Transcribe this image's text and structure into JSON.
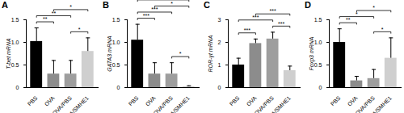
{
  "chart_data": [
    {
      "type": "bar",
      "panel": "A",
      "ylabel": "T-bet mRNA",
      "categories": [
        "PBS",
        "OVA",
        "OVA/PBS",
        "OVA/SMHE1"
      ],
      "values": [
        1.02,
        0.3,
        0.3,
        0.8
      ],
      "errors": [
        0.3,
        0.3,
        0.3,
        0.3
      ],
      "colors": [
        "#000000",
        "#8c8c8c",
        "#9e9e9e",
        "#cfcfcf"
      ],
      "ylim": [
        0,
        1.5
      ],
      "yticks": [
        0,
        0.5,
        {
          "value": 1,
          "label": "1.0"
        },
        1.5
      ],
      "significance": [
        {
          "from": "PBS",
          "to": "OVA",
          "label": "**"
        },
        {
          "from": "PBS",
          "to": "OVA/PBS",
          "label": "**"
        },
        {
          "from": "OVA/PBS",
          "to": "OVA/SMHE1",
          "label": "*"
        },
        {
          "from": "OVA",
          "to": "OVA/SMHE1",
          "label": "*"
        }
      ]
    },
    {
      "type": "bar",
      "panel": "B",
      "ylabel": "GATA3 mRNA",
      "categories": [
        "PBS",
        "OVA",
        "OVA/PBS",
        "OVA/SMHE1"
      ],
      "values": [
        1.05,
        0.3,
        0.3,
        0.02
      ],
      "errors": [
        0.35,
        0.25,
        0.25,
        0.02
      ],
      "colors": [
        "#000000",
        "#8c8c8c",
        "#9e9e9e",
        "#cfcfcf"
      ],
      "ylim": [
        0,
        1.5
      ],
      "yticks": [
        0,
        0.5,
        {
          "value": 1,
          "label": "1.0"
        },
        1.5
      ],
      "significance": [
        {
          "from": "PBS",
          "to": "OVA",
          "label": "***"
        },
        {
          "from": "PBS",
          "to": "OVA/PBS",
          "label": "***"
        },
        {
          "from": "PBS",
          "to": "OVA/SMHE1",
          "label": "***"
        },
        {
          "from": "OVA/PBS",
          "to": "OVA/SMHE1",
          "label": "*"
        },
        {
          "from": "OVA",
          "to": "OVA/SMHE1",
          "label": "*"
        }
      ]
    },
    {
      "type": "bar",
      "panel": "C",
      "ylabel": "ROR-γt mRNA",
      "categories": [
        "PBS",
        "OVA",
        "OVA/PBS",
        "OVA/SMHE1"
      ],
      "values": [
        1.0,
        1.95,
        2.15,
        0.75
      ],
      "errors": [
        0.3,
        0.2,
        0.3,
        0.2
      ],
      "colors": [
        "#000000",
        "#8c8c8c",
        "#9e9e9e",
        "#cfcfcf"
      ],
      "ylim": [
        0,
        3
      ],
      "yticks": [
        0,
        1,
        2,
        3
      ],
      "significance": [
        {
          "from": "PBS",
          "to": "OVA",
          "label": "***"
        },
        {
          "from": "PBS",
          "to": "OVA/PBS",
          "label": "***"
        },
        {
          "from": "OVA/PBS",
          "to": "OVA/SMHE1",
          "label": "***"
        },
        {
          "from": "OVA",
          "to": "OVA/SMHE1",
          "label": "***"
        }
      ]
    },
    {
      "type": "bar",
      "panel": "D",
      "ylabel": "Foxp3 mRNA",
      "categories": [
        "PBS",
        "OVA",
        "OVA/PBS",
        "OVA/SMHE1"
      ],
      "values": [
        1.0,
        0.15,
        0.2,
        0.65
      ],
      "errors": [
        0.3,
        0.1,
        0.2,
        0.45
      ],
      "colors": [
        "#000000",
        "#8c8c8c",
        "#9e9e9e",
        "#cfcfcf"
      ],
      "ylim": [
        0,
        1.5
      ],
      "yticks": [
        0,
        0.5,
        {
          "value": 1,
          "label": "1.0"
        },
        1.5
      ],
      "significance": [
        {
          "from": "PBS",
          "to": "OVA",
          "label": "**"
        },
        {
          "from": "PBS",
          "to": "OVA/PBS",
          "label": "*"
        },
        {
          "from": "OVA/PBS",
          "to": "OVA/SMHE1",
          "label": "*"
        },
        {
          "from": "OVA",
          "to": "OVA/SMHE1",
          "label": "*"
        }
      ]
    }
  ]
}
